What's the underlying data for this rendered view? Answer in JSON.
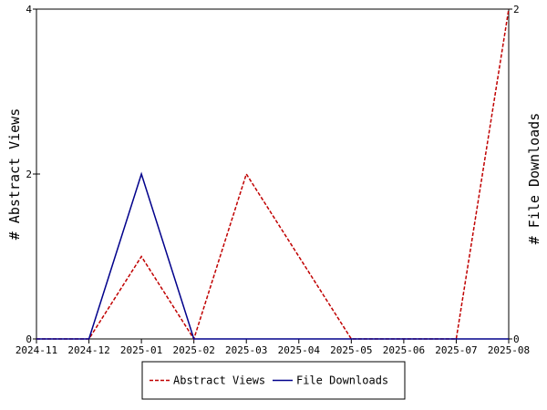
{
  "chart_data": {
    "type": "line",
    "title": "",
    "xlabel": "",
    "ylabel_left": "# Abstract Views",
    "ylabel_right": "# File Downloads",
    "x": [
      "2024-11",
      "2024-12",
      "2025-01",
      "2025-02",
      "2025-03",
      "2025-04",
      "2025-05",
      "2025-06",
      "2025-07",
      "2025-08"
    ],
    "y_left": {
      "lim": [
        0,
        4
      ],
      "ticks": [
        0,
        2,
        4
      ]
    },
    "y_right": {
      "lim": [
        0,
        2
      ],
      "ticks": [
        0,
        2
      ]
    },
    "grid": false,
    "legend_position": "bottom-center",
    "series": [
      {
        "name": "Abstract Views",
        "axis": "left",
        "color": "#c00000",
        "dash": "dashed",
        "points": [
          {
            "x": "2024-11",
            "y": 0
          },
          {
            "x": "2024-12",
            "y": 0
          },
          {
            "x": "2025-01",
            "y": 1
          },
          {
            "x": "2025-02",
            "y": 0
          },
          {
            "x": "2025-03",
            "y": 2
          },
          {
            "x": "2025-05",
            "y": 0
          },
          {
            "x": "2025-06",
            "y": 0
          },
          {
            "x": "2025-07",
            "y": 0
          },
          {
            "x": "2025-08",
            "y": 4
          }
        ]
      },
      {
        "name": "File Downloads",
        "axis": "right",
        "color": "#00008b",
        "dash": "solid",
        "points": [
          {
            "x": "2024-11",
            "y": 0
          },
          {
            "x": "2024-12",
            "y": 0
          },
          {
            "x": "2025-01",
            "y": 1
          },
          {
            "x": "2025-02",
            "y": 0
          },
          {
            "x": "2025-03",
            "y": 0
          },
          {
            "x": "2025-04",
            "y": 0
          },
          {
            "x": "2025-05",
            "y": 0
          },
          {
            "x": "2025-06",
            "y": 0
          },
          {
            "x": "2025-07",
            "y": 0
          },
          {
            "x": "2025-08",
            "y": 0
          }
        ]
      }
    ]
  }
}
